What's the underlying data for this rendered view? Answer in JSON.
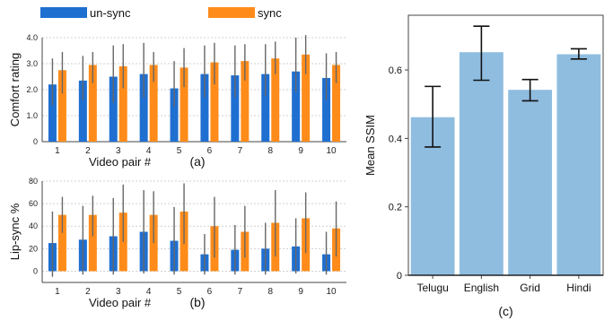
{
  "chart_data": [
    {
      "type": "bar",
      "panel_label": "(a)",
      "categories": [
        "1",
        "2",
        "3",
        "4",
        "5",
        "6",
        "7",
        "8",
        "9",
        "10"
      ],
      "xlabel": "Video pair #",
      "ylabel": "Comfort rating",
      "ylim": [
        0,
        4.0
      ],
      "yticks": [
        "0",
        "1.0",
        "2.0",
        "3.0",
        "4.0"
      ],
      "legend": {
        "placement": "top"
      },
      "series": [
        {
          "name": "un-sync",
          "color": "#1f6fd1",
          "values": [
            2.2,
            2.35,
            2.5,
            2.6,
            2.05,
            2.6,
            2.55,
            2.6,
            2.7,
            2.45
          ],
          "err_low": [
            1.4,
            1.6,
            1.5,
            1.7,
            1.35,
            1.7,
            1.7,
            1.75,
            1.9,
            1.6
          ],
          "err_high": [
            3.2,
            3.3,
            3.7,
            3.8,
            3.1,
            3.7,
            3.7,
            3.75,
            4.0,
            3.4
          ]
        },
        {
          "name": "sync",
          "color": "#ff8c1a",
          "values": [
            2.75,
            2.95,
            2.9,
            2.95,
            2.85,
            3.05,
            3.1,
            3.2,
            3.35,
            2.95
          ],
          "err_low": [
            1.85,
            2.25,
            2.05,
            2.3,
            2.1,
            2.2,
            2.35,
            2.6,
            2.6,
            2.25
          ],
          "err_high": [
            3.45,
            3.45,
            3.75,
            3.45,
            3.6,
            3.8,
            3.75,
            3.85,
            4.1,
            3.45
          ]
        }
      ]
    },
    {
      "type": "bar",
      "panel_label": "(b)",
      "categories": [
        "1",
        "2",
        "3",
        "4",
        "5",
        "6",
        "7",
        "8",
        "9",
        "10"
      ],
      "xlabel": "Video pair #",
      "ylabel": "Lip-sync %",
      "ylim": [
        -10,
        80
      ],
      "yticks": [
        "0",
        "20",
        "40",
        "60",
        "80"
      ],
      "series": [
        {
          "name": "un-sync",
          "color": "#1f6fd1",
          "values": [
            25,
            28,
            31,
            35,
            27,
            15,
            19,
            20,
            22,
            15
          ],
          "err_low": [
            -5,
            -3,
            -3,
            -2,
            -3,
            -3,
            -3,
            -3,
            -2,
            -3
          ],
          "err_high": [
            53,
            58,
            65,
            72,
            57,
            33,
            41,
            43,
            47,
            35
          ]
        },
        {
          "name": "sync",
          "color": "#ff8c1a",
          "values": [
            50,
            50,
            52,
            50,
            53,
            40,
            35,
            43,
            47,
            38
          ],
          "err_low": [
            34,
            31,
            26,
            25,
            24,
            12,
            12,
            13,
            16,
            13
          ],
          "err_high": [
            66,
            67,
            77,
            71,
            78,
            66,
            58,
            72,
            70,
            62
          ]
        }
      ]
    },
    {
      "type": "bar",
      "panel_label": "(c)",
      "categories": [
        "Telugu",
        "English",
        "Grid",
        "Hindi"
      ],
      "xlabel": "",
      "ylabel": "Mean SSIM",
      "ylim": [
        0,
        0.76
      ],
      "yticks": [
        "0",
        "0.2",
        "0.4",
        "0.6"
      ],
      "grid": false,
      "series": [
        {
          "color": "#8fbde0",
          "values": [
            0.462,
            0.652,
            0.542,
            0.646
          ],
          "err_low": [
            0.375,
            0.57,
            0.51,
            0.632
          ],
          "err_high": [
            0.552,
            0.728,
            0.572,
            0.662
          ]
        }
      ]
    }
  ]
}
